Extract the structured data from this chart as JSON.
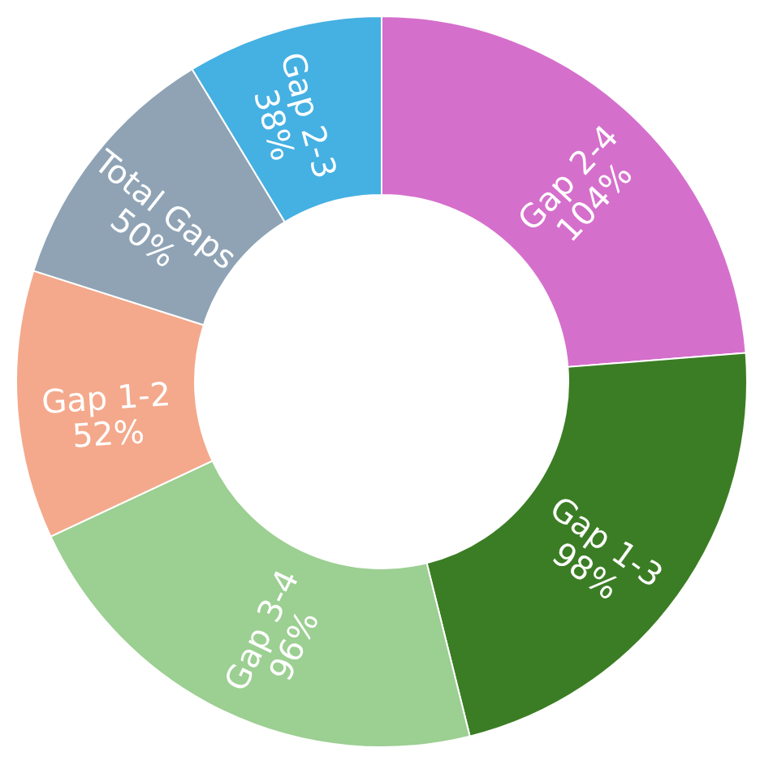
{
  "chart_data": {
    "type": "donut",
    "categories": [
      "Gap 2-4",
      "Gap 1-3",
      "Gap 3-4",
      "Gap 1-2",
      "Total Gaps",
      "Gap 2-3"
    ],
    "values": [
      104,
      98,
      96,
      52,
      50,
      38
    ],
    "value_labels": [
      "104%",
      "98%",
      "96%",
      "52%",
      "50%",
      "38%"
    ],
    "colors": [
      "#d56fcc",
      "#3b7d24",
      "#9ccf92",
      "#f4a98c",
      "#8fa3b5",
      "#45b0e2"
    ],
    "legend": false
  }
}
